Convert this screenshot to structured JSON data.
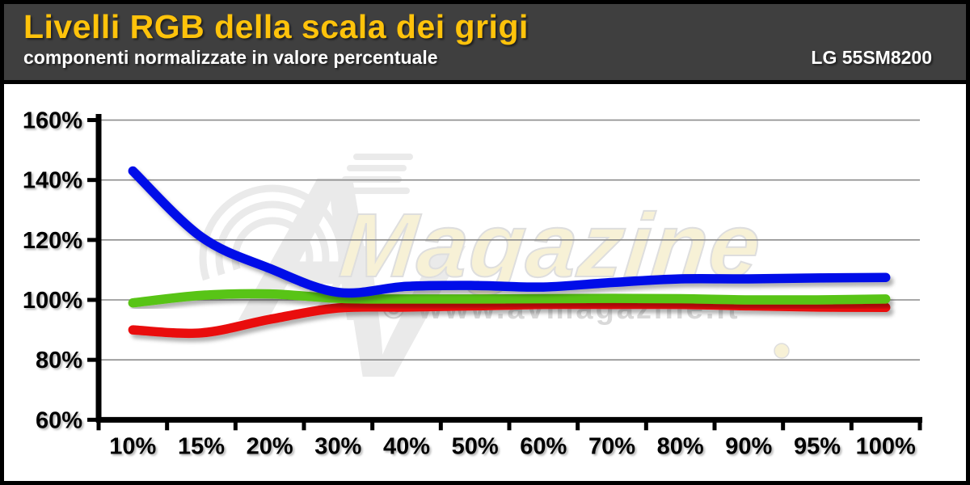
{
  "header": {
    "title": "Livelli RGB della scala dei grigi",
    "subtitle": "componenti normalizzate in valore percentuale",
    "device": "LG 55SM8200",
    "background_color": "#3F3F3F",
    "title_color": "#FFC30B",
    "text_color": "#FFFFFF"
  },
  "watermark": {
    "logo_text_a": "A",
    "logo_text_v": "V",
    "brand_text": "Magazine",
    "copyright_text": "© www.avmagazine.it",
    "logo_color": "#EAEAEA",
    "brand_fill": "#F7F1D6",
    "brand_outline": "#DEDEDE",
    "copyright_color": "#D9D9D9"
  },
  "chart_data": {
    "type": "line",
    "title": "Livelli RGB della scala dei grigi",
    "subtitle": "componenti normalizzate in valore percentuale",
    "xlabel": "",
    "ylabel": "",
    "categories": [
      "10%",
      "15%",
      "20%",
      "30%",
      "40%",
      "50%",
      "60%",
      "70%",
      "80%",
      "90%",
      "95%",
      "100%"
    ],
    "series": [
      {
        "name": "R",
        "color": "#E90D0D",
        "values": [
          90,
          89,
          93.5,
          97.3,
          97.6,
          98,
          98.5,
          98.5,
          98.5,
          98,
          97.6,
          97.5
        ]
      },
      {
        "name": "G",
        "color": "#58C412",
        "values": [
          99,
          101.5,
          102,
          100.5,
          100.3,
          100.3,
          100.4,
          100.5,
          100.4,
          100,
          100,
          100.3
        ]
      },
      {
        "name": "B",
        "color": "#0011E8",
        "values": [
          143,
          121,
          110.5,
          102.5,
          104.5,
          104.8,
          104.3,
          105.8,
          107,
          107,
          107.3,
          107.5
        ]
      }
    ],
    "y_ticks": [
      160,
      140,
      120,
      100,
      80,
      60
    ],
    "y_tick_labels": [
      "160%",
      "140%",
      "120%",
      "100%",
      "80%",
      "60%"
    ],
    "ylim": [
      60,
      160
    ],
    "grid": true,
    "gridline_color": "#8C8C8C",
    "axis_color": "#000000",
    "legend": "none"
  }
}
